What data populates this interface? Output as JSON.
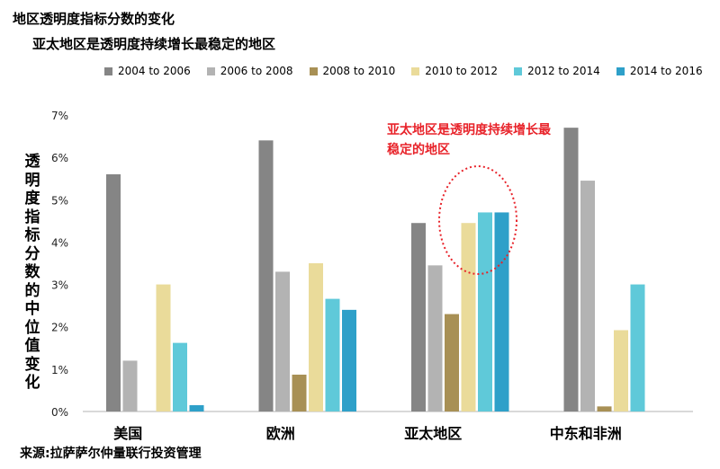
{
  "chart_data": {
    "type": "bar",
    "title": "地区透明度指标分数的变化",
    "subtitle": "亚太地区是透明度持续增长最稳定的地区",
    "ylabel": "透明度指标分数的中位值变化",
    "xlabel": "",
    "ylim": [
      0,
      7
    ],
    "yticks": [
      "0%",
      "1%",
      "2%",
      "3%",
      "4%",
      "5%",
      "6%",
      "7%"
    ],
    "categories": [
      "美国",
      "欧洲",
      "亚太地区",
      "中东和非洲"
    ],
    "series": [
      {
        "name": "2004 to 2006",
        "color": "#858585",
        "values": [
          5.6,
          6.4,
          4.45,
          6.7
        ]
      },
      {
        "name": "2006 to 2008",
        "color": "#b3b3b3",
        "values": [
          1.2,
          3.3,
          3.45,
          5.45
        ]
      },
      {
        "name": "2008 to 2010",
        "color": "#a89055",
        "values": [
          0,
          0.87,
          2.3,
          0.12
        ]
      },
      {
        "name": "2010 to 2012",
        "color": "#eadb9a",
        "values": [
          3.0,
          3.5,
          4.45,
          1.92
        ]
      },
      {
        "name": "2012 to 2014",
        "color": "#5fc9d9",
        "values": [
          1.62,
          2.66,
          4.7,
          3.0
        ]
      },
      {
        "name": "2014 to 2016",
        "color": "#2ea0c9",
        "values": [
          0.15,
          2.4,
          4.7,
          0
        ]
      }
    ],
    "annotation": "亚太地区是透明度持续增长最稳定的地区",
    "annotation_color": "#e8232a",
    "grid": false,
    "legend_position": "top"
  },
  "source": "来源:拉萨萨尔仲量联行投资管理"
}
